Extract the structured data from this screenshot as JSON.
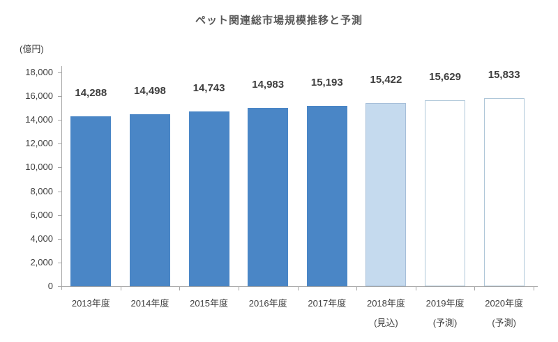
{
  "title": "ペット関連総市場規模推移と予測",
  "y_axis_unit": "(億円)",
  "colors": {
    "bar_solid": "#4a86c6",
    "bar_light_fill": "#c5daee",
    "bar_light_border": "#a7bfd9",
    "bar_outline_border": "#aec6d8",
    "axis": "#a6a6a6",
    "text": "#404040",
    "title_text": "#595959"
  },
  "chart_data": {
    "type": "bar",
    "title": "ペット関連総市場規模推移と予測",
    "ylabel": "(億円)",
    "xlabel": "",
    "categories": [
      "2013年度",
      "2014年度",
      "2015年度",
      "2016年度",
      "2017年度",
      "2018年度",
      "2019年度",
      "2020年度"
    ],
    "category_sublabels": [
      "",
      "",
      "",
      "",
      "",
      "(見込)",
      "(予測)",
      "(予測)"
    ],
    "values": [
      14288,
      14498,
      14743,
      14983,
      15193,
      15422,
      15629,
      15833
    ],
    "value_labels": [
      "14,288",
      "14,498",
      "14,743",
      "14,983",
      "15,193",
      "15,422",
      "15,629",
      "15,833"
    ],
    "bar_styles": [
      "solid",
      "solid",
      "solid",
      "solid",
      "solid",
      "light",
      "outline",
      "outline"
    ],
    "ylim": [
      0,
      18000
    ],
    "ytick_step": 2000,
    "grid": false,
    "legend": "none"
  }
}
